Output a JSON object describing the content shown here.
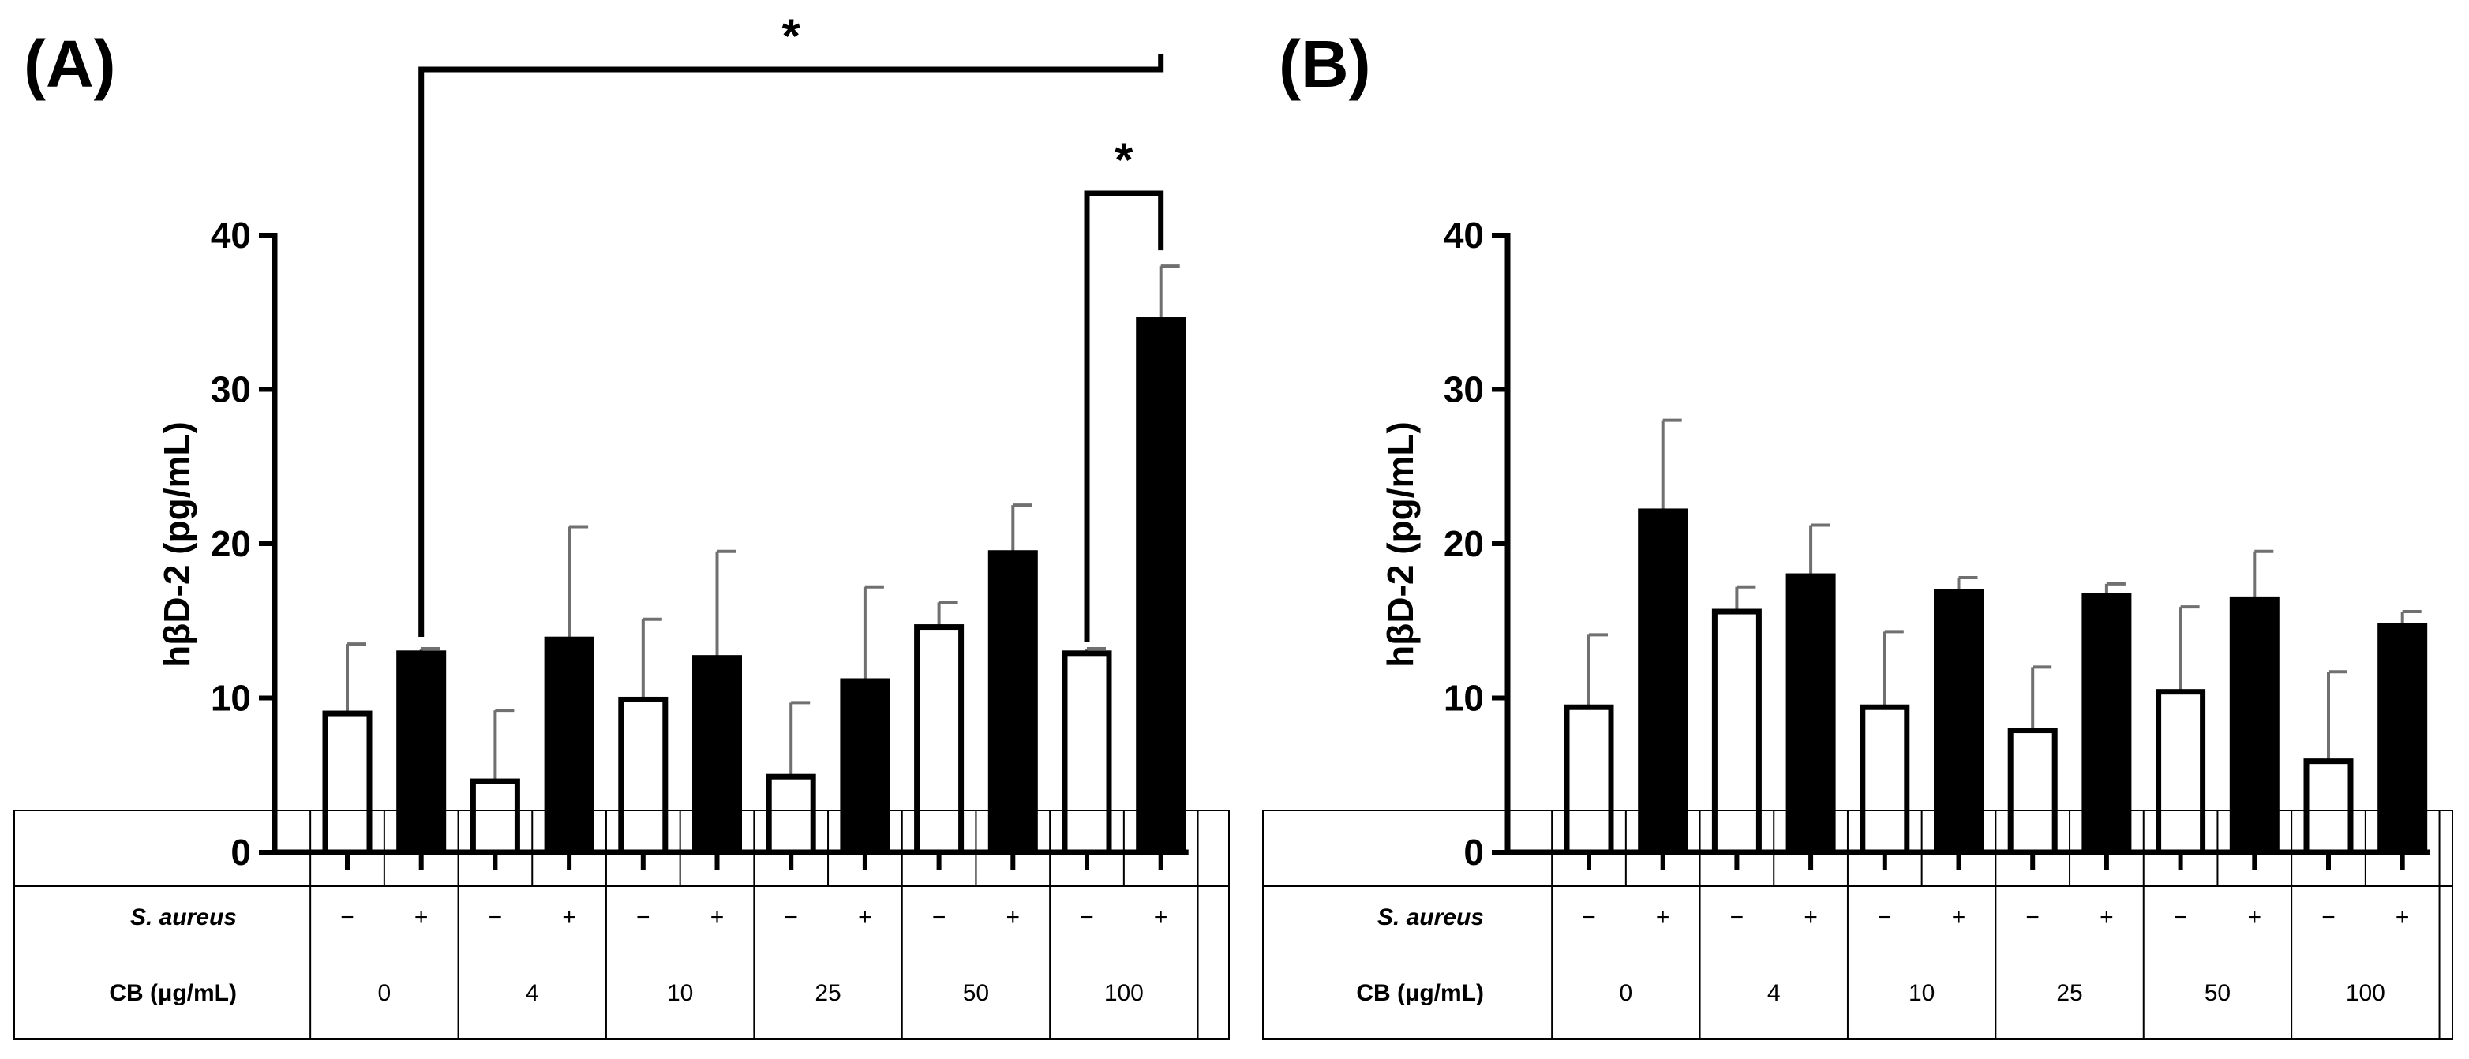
{
  "chart_data": [
    {
      "panel": "(A)",
      "type": "bar",
      "ylabel": "hβD-2 (pg/mL)",
      "ylim": [
        0,
        40
      ],
      "yticks": [
        "0",
        "10",
        "20",
        "30",
        "40"
      ],
      "row_labels": [
        "S. aureus",
        "CB (μg/mL)"
      ],
      "cb_levels": [
        "0",
        "4",
        "10",
        "25",
        "50",
        "100"
      ],
      "s_aureus": [
        "−",
        "+",
        "−",
        "+",
        "−",
        "+",
        "−",
        "+",
        "−",
        "+",
        "−",
        "+"
      ],
      "bars": [
        {
          "cb": "0",
          "s_aureus": "−",
          "value": 9.0,
          "error": 4.5
        },
        {
          "cb": "0",
          "s_aureus": "+",
          "value": 12.9,
          "error": 0.3
        },
        {
          "cb": "4",
          "s_aureus": "−",
          "value": 4.6,
          "error": 4.6
        },
        {
          "cb": "4",
          "s_aureus": "+",
          "value": 13.8,
          "error": 7.3
        },
        {
          "cb": "10",
          "s_aureus": "−",
          "value": 9.9,
          "error": 5.2
        },
        {
          "cb": "10",
          "s_aureus": "+",
          "value": 12.6,
          "error": 6.9
        },
        {
          "cb": "25",
          "s_aureus": "−",
          "value": 4.9,
          "error": 4.8
        },
        {
          "cb": "25",
          "s_aureus": "+",
          "value": 11.1,
          "error": 6.1
        },
        {
          "cb": "50",
          "s_aureus": "−",
          "value": 14.6,
          "error": 1.6
        },
        {
          "cb": "50",
          "s_aureus": "+",
          "value": 19.4,
          "error": 3.1
        },
        {
          "cb": "100",
          "s_aureus": "−",
          "value": 12.9,
          "error": 0.3
        },
        {
          "cb": "100",
          "s_aureus": "+",
          "value": 34.5,
          "error": 3.5
        }
      ],
      "significance": [
        {
          "from_bar": 1,
          "to_bar": 11,
          "label": "*"
        },
        {
          "from_bar": 10,
          "to_bar": 11,
          "label": "*"
        }
      ]
    },
    {
      "panel": "(B)",
      "type": "bar",
      "ylabel": "hβD-2 (pg/mL)",
      "ylim": [
        0,
        40
      ],
      "yticks": [
        "0",
        "10",
        "20",
        "30",
        "40"
      ],
      "row_labels": [
        "S. aureus",
        "CB (μg/mL)"
      ],
      "cb_levels": [
        "0",
        "4",
        "10",
        "25",
        "50",
        "100"
      ],
      "s_aureus": [
        "−",
        "+",
        "−",
        "+",
        "−",
        "+",
        "−",
        "+",
        "−",
        "+",
        "−",
        "+"
      ],
      "bars": [
        {
          "cb": "0",
          "s_aureus": "−",
          "value": 9.4,
          "error": 4.7
        },
        {
          "cb": "0",
          "s_aureus": "+",
          "value": 22.1,
          "error": 5.9
        },
        {
          "cb": "4",
          "s_aureus": "−",
          "value": 15.6,
          "error": 1.6
        },
        {
          "cb": "4",
          "s_aureus": "+",
          "value": 17.9,
          "error": 3.3
        },
        {
          "cb": "10",
          "s_aureus": "−",
          "value": 9.4,
          "error": 4.9
        },
        {
          "cb": "10",
          "s_aureus": "+",
          "value": 16.9,
          "error": 0.9
        },
        {
          "cb": "25",
          "s_aureus": "−",
          "value": 7.9,
          "error": 4.1
        },
        {
          "cb": "25",
          "s_aureus": "+",
          "value": 16.6,
          "error": 0.8
        },
        {
          "cb": "50",
          "s_aureus": "−",
          "value": 10.4,
          "error": 5.5
        },
        {
          "cb": "50",
          "s_aureus": "+",
          "value": 16.4,
          "error": 3.1
        },
        {
          "cb": "100",
          "s_aureus": "−",
          "value": 5.9,
          "error": 5.8
        },
        {
          "cb": "100",
          "s_aureus": "+",
          "value": 14.7,
          "error": 0.9
        }
      ],
      "significance": []
    }
  ]
}
